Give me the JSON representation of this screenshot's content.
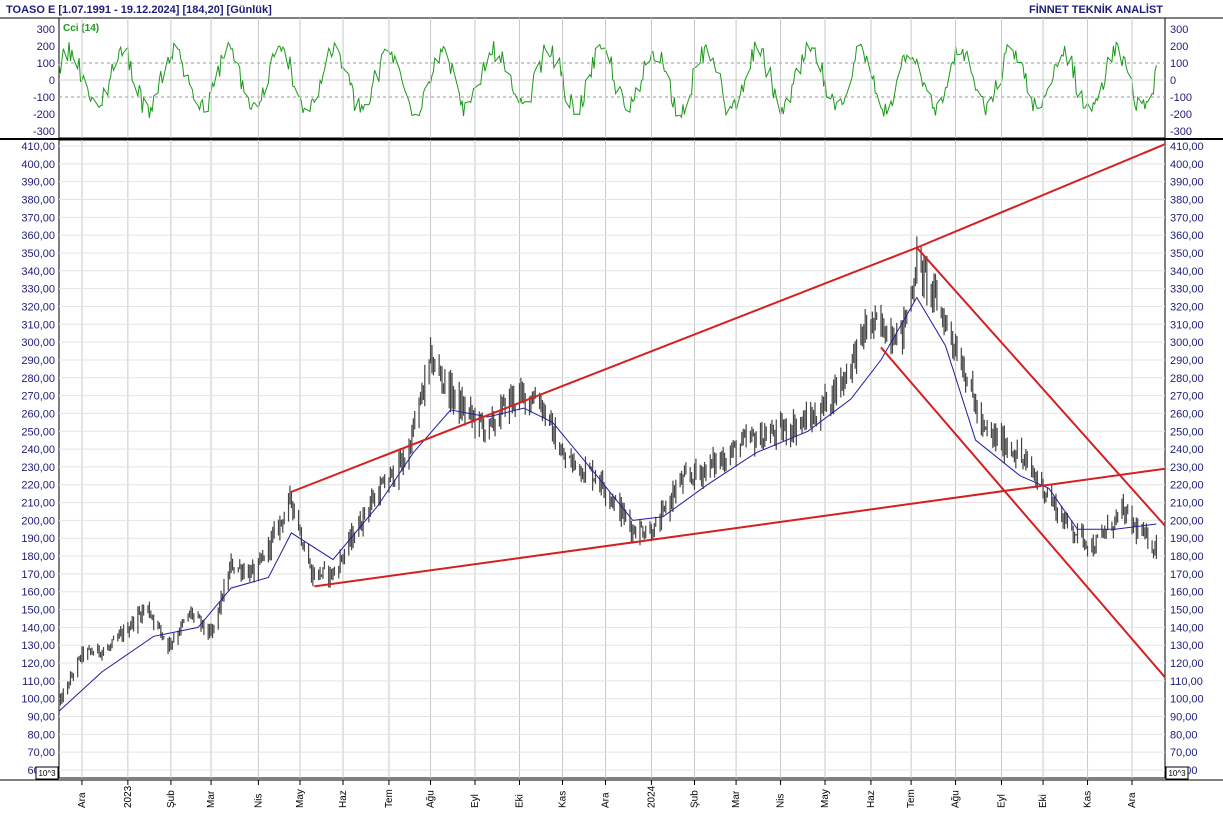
{
  "header": {
    "title": "TOASO E  [1.07.1991 - 19.12.2024]  [184,20]  [Günlük]",
    "brand": "FİNNET TEKNİK ANALİST"
  },
  "indicator": {
    "label": "Cci (14)",
    "ticks": [
      300,
      200,
      100,
      0,
      -100,
      -200,
      -300
    ],
    "ylim": [
      -330,
      330
    ],
    "dashed_levels": [
      100,
      -100
    ],
    "color": "#1a9a1a"
  },
  "scale_labels": {
    "left": "10^3",
    "right": "10^3"
  },
  "colors": {
    "price_bars": "#444444",
    "moving_average": "#1f1f9e",
    "trendlines": "#d42020",
    "grid": "#c8c8c8",
    "axis_text": "#1c1c7a"
  },
  "chart_data": {
    "type": "line",
    "title": "TOASO E  [1.07.1991 - 19.12.2024]  [184,20]  [Günlük]",
    "xlabel": "",
    "ylabel": "",
    "ylim": [
      60,
      410
    ],
    "y_ticks": [
      "410,00",
      "400,00",
      "390,00",
      "380,00",
      "370,00",
      "360,00",
      "350,00",
      "340,00",
      "330,00",
      "320,00",
      "310,00",
      "300,00",
      "290,00",
      "280,00",
      "270,00",
      "260,00",
      "250,00",
      "240,00",
      "230,00",
      "220,00",
      "210,00",
      "200,00",
      "190,00",
      "180,00",
      "170,00",
      "160,00",
      "150,00",
      "140,00",
      "130,00",
      "120,00",
      "110,00",
      "100,00",
      "90,00",
      "80,00",
      "70,00",
      "60,00"
    ],
    "y_tick_values": [
      410,
      400,
      390,
      380,
      370,
      360,
      350,
      340,
      330,
      320,
      310,
      300,
      290,
      280,
      270,
      260,
      250,
      240,
      230,
      220,
      210,
      200,
      190,
      180,
      170,
      160,
      150,
      140,
      130,
      120,
      110,
      100,
      90,
      80,
      70,
      60
    ],
    "x_range": [
      "2022-11-15",
      "2024-12-25"
    ],
    "x_ticks": [
      {
        "label": "Ara",
        "date": "2022-12-01"
      },
      {
        "label": "2023",
        "date": "2023-01-02"
      },
      {
        "label": "Şub",
        "date": "2023-02-01"
      },
      {
        "label": "Mar",
        "date": "2023-03-01"
      },
      {
        "label": "Nis",
        "date": "2023-04-03"
      },
      {
        "label": "May",
        "date": "2023-05-02"
      },
      {
        "label": "Haz",
        "date": "2023-06-01"
      },
      {
        "label": "Tem",
        "date": "2023-07-03"
      },
      {
        "label": "Ağu",
        "date": "2023-08-01"
      },
      {
        "label": "Eyl",
        "date": "2023-09-01"
      },
      {
        "label": "Eki",
        "date": "2023-10-02"
      },
      {
        "label": "Kas",
        "date": "2023-11-01"
      },
      {
        "label": "Ara",
        "date": "2023-12-01"
      },
      {
        "label": "2024",
        "date": "2024-01-02"
      },
      {
        "label": "Şub",
        "date": "2024-02-01"
      },
      {
        "label": "Mar",
        "date": "2024-03-01"
      },
      {
        "label": "Nis",
        "date": "2024-04-01"
      },
      {
        "label": "May",
        "date": "2024-05-02"
      },
      {
        "label": "Haz",
        "date": "2024-06-03"
      },
      {
        "label": "Tem",
        "date": "2024-07-01"
      },
      {
        "label": "Ağu",
        "date": "2024-08-01"
      },
      {
        "label": "Eyl",
        "date": "2024-09-02"
      },
      {
        "label": "Eki",
        "date": "2024-10-01"
      },
      {
        "label": "Kas",
        "date": "2024-11-01"
      },
      {
        "label": "Ara",
        "date": "2024-12-02"
      }
    ],
    "series": [
      {
        "name": "TOASO E",
        "type": "ohlc-close-path",
        "x": [
          "2022-11-15",
          "2022-12-01",
          "2022-12-20",
          "2023-01-15",
          "2023-01-30",
          "2023-02-15",
          "2023-03-01",
          "2023-03-15",
          "2023-04-01",
          "2023-04-26",
          "2023-05-10",
          "2023-05-25",
          "2023-06-20",
          "2023-07-15",
          "2023-08-01",
          "2023-08-20",
          "2023-09-10",
          "2023-09-25",
          "2023-10-15",
          "2023-11-01",
          "2023-11-25",
          "2023-12-20",
          "2024-01-05",
          "2024-01-20",
          "2024-02-15",
          "2024-03-10",
          "2024-04-01",
          "2024-04-25",
          "2024-05-15",
          "2024-06-01",
          "2024-06-25",
          "2024-07-05",
          "2024-07-20",
          "2024-08-05",
          "2024-08-20",
          "2024-09-10",
          "2024-09-30",
          "2024-10-15",
          "2024-11-05",
          "2024-11-25",
          "2024-12-05",
          "2024-12-19"
        ],
        "values": [
          97,
          125,
          128,
          152,
          130,
          148,
          135,
          175,
          170,
          212,
          170,
          170,
          210,
          235,
          290,
          265,
          250,
          268,
          270,
          235,
          225,
          195,
          195,
          220,
          232,
          245,
          250,
          258,
          280,
          310,
          305,
          345,
          320,
          290,
          250,
          240,
          220,
          200,
          185,
          205,
          195,
          184.2
        ]
      },
      {
        "name": "",
        "type": "moving-average",
        "x": [
          "2022-11-15",
          "2022-12-15",
          "2023-01-20",
          "2023-02-20",
          "2023-03-15",
          "2023-04-10",
          "2023-04-26",
          "2023-05-25",
          "2023-06-25",
          "2023-07-20",
          "2023-08-15",
          "2023-09-10",
          "2023-10-05",
          "2023-10-25",
          "2023-11-25",
          "2023-12-20",
          "2024-01-10",
          "2024-02-10",
          "2024-03-15",
          "2024-04-20",
          "2024-05-20",
          "2024-06-10",
          "2024-07-05",
          "2024-07-25",
          "2024-08-15",
          "2024-09-15",
          "2024-10-05",
          "2024-10-25",
          "2024-11-20",
          "2024-12-19"
        ],
        "values": [
          93,
          115,
          135,
          140,
          162,
          168,
          193,
          178,
          208,
          238,
          262,
          258,
          263,
          255,
          225,
          200,
          202,
          220,
          238,
          250,
          268,
          290,
          325,
          298,
          245,
          225,
          218,
          195,
          195,
          198
        ]
      }
    ],
    "trendlines": [
      {
        "from": {
          "x": "2023-04-26",
          "y": 216
        },
        "to": {
          "x": "2024-07-05",
          "y": 353
        }
      },
      {
        "from": {
          "x": "2024-07-05",
          "y": 353
        },
        "to": {
          "x": "2024-12-25",
          "y": 411
        }
      },
      {
        "from": {
          "x": "2023-05-12",
          "y": 163
        },
        "to": {
          "x": "2024-01-01",
          "y": 189
        }
      },
      {
        "from": {
          "x": "2024-01-01",
          "y": 189
        },
        "to": {
          "x": "2024-12-25",
          "y": 229
        }
      },
      {
        "from": {
          "x": "2024-07-05",
          "y": 353
        },
        "to": {
          "x": "2024-12-25",
          "y": 197
        }
      },
      {
        "from": {
          "x": "2024-06-10",
          "y": 297
        },
        "to": {
          "x": "2024-12-25",
          "y": 112
        }
      }
    ]
  }
}
